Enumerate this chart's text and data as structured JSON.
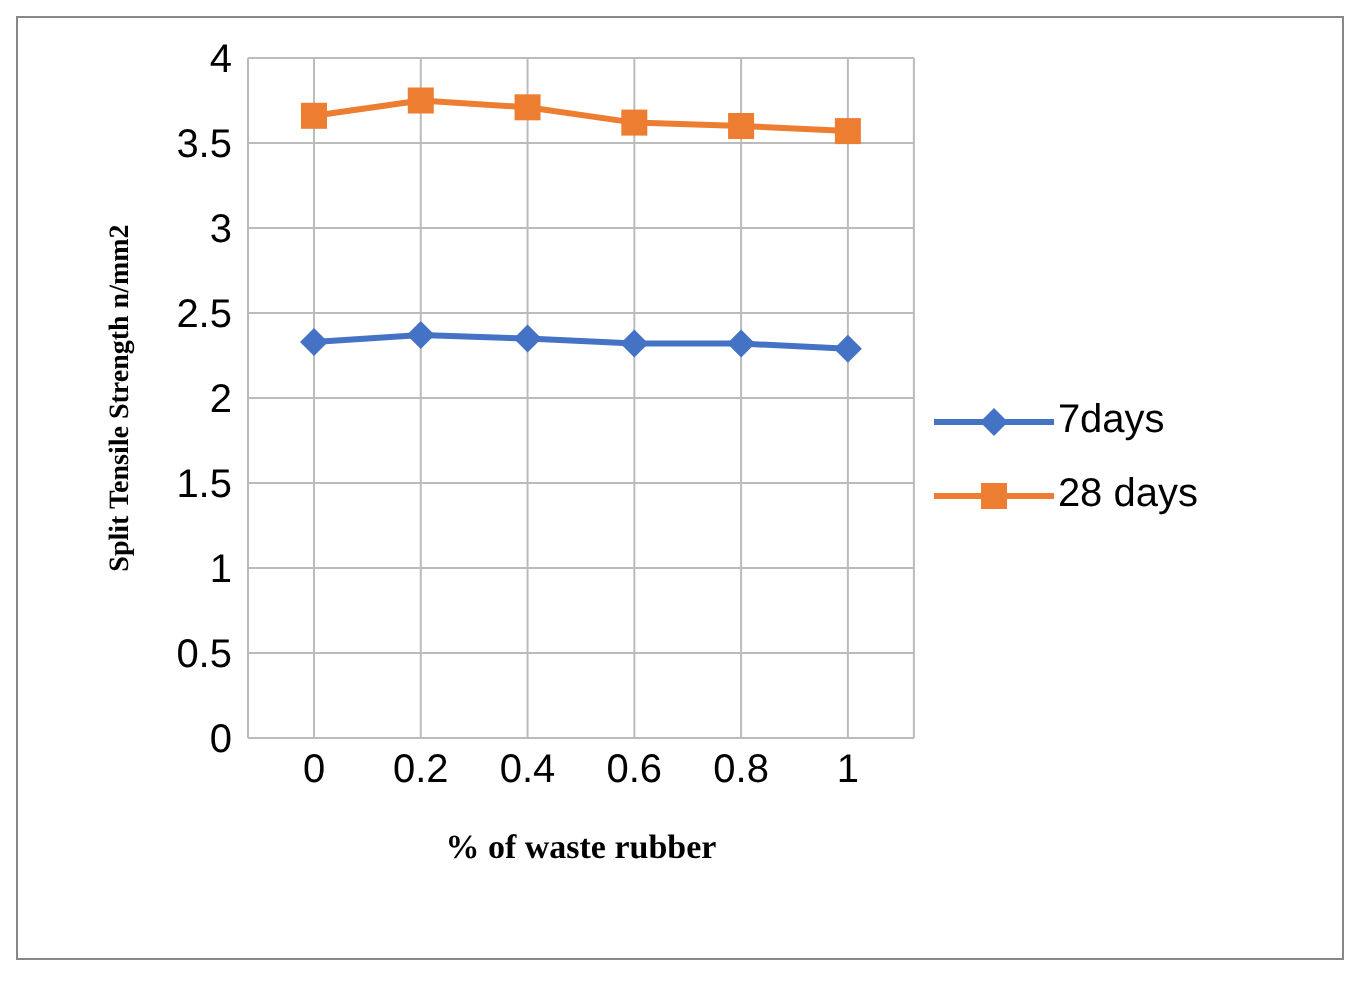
{
  "chart_data": {
    "type": "line",
    "xlabel": "% of waste rubber",
    "ylabel": "Split Tensile Strength n/mm2",
    "categories": [
      "0",
      "0.2",
      "0.4",
      "0.6",
      "0.8",
      "1"
    ],
    "series": [
      {
        "name": "7days",
        "color": "#4472c4",
        "marker": "diamond",
        "values": [
          2.33,
          2.37,
          2.35,
          2.32,
          2.32,
          2.29
        ]
      },
      {
        "name": "28 days",
        "color": "#ed7d31",
        "marker": "square",
        "values": [
          3.66,
          3.75,
          3.71,
          3.62,
          3.6,
          3.57
        ]
      }
    ],
    "ylim": [
      0,
      4
    ],
    "yticks": [
      0,
      0.5,
      1,
      1.5,
      2,
      2.5,
      3,
      3.5,
      4
    ],
    "grid": true,
    "legend": "right",
    "line_style": "solid"
  }
}
